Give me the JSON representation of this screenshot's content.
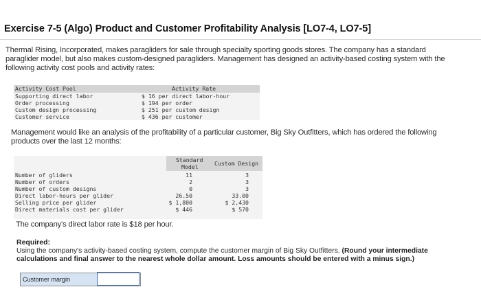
{
  "title": "Exercise 7-5 (Algo) Product and Customer Profitability Analysis [LO7-4, LO7-5]",
  "intro": {
    "line1": "Thermal Rising, Incorporated, makes paragliders for sale through specialty sporting goods stores. The company has a standard",
    "line2": "paraglider model, but also makes custom-designed paragliders. Management has designed an activity-based costing system with the",
    "line3": "following activity cost pools and activity rates:"
  },
  "activity_table": {
    "header_pool": "Activity Cost Pool",
    "header_rate": "Activity Rate",
    "rows": [
      {
        "pool": "Supporting direct labor",
        "rate": "$ 16  per direct labor-hour"
      },
      {
        "pool": "Order processing",
        "rate": "$ 194  per order"
      },
      {
        "pool": "Custom design processing",
        "rate": "$ 251  per custom design"
      },
      {
        "pool": "Customer service",
        "rate": "$ 436  per customer"
      }
    ]
  },
  "analysis_intro": {
    "line1": "Management would like an analysis of the profitability of a particular customer, Big Sky Outfitters, which has ordered the following",
    "line2": "products over the last 12 months:"
  },
  "product_table": {
    "header_standard_1": "Standard",
    "header_standard_2": "Model",
    "header_custom": "Custom Design",
    "rows": [
      {
        "label": "Number of gliders",
        "standard": "11",
        "custom": "3"
      },
      {
        "label": "Number of orders",
        "standard": "2",
        "custom": "3"
      },
      {
        "label": "Number of custom designs",
        "standard": "0",
        "custom": "3"
      },
      {
        "label": "Direct labor-hours per glider",
        "standard": "26.50",
        "custom": "33.00"
      },
      {
        "label": "Selling price per glider",
        "standard": "$ 1,800",
        "custom": "$ 2,430"
      },
      {
        "label": "Direct materials cost per glider",
        "standard": "$ 446",
        "custom": "$ 570"
      }
    ]
  },
  "labor_rate_note": "The company's direct labor rate is $18 per hour.",
  "required": {
    "label": "Required:",
    "text_plain": "Using the company's activity-based costing system, compute the customer margin of Big Sky Outfitters.",
    "text_bold_1": "(Round your intermediate",
    "text_bold_2": "calculations and final answer to the nearest whole dollar amount. Loss amounts should be entered with a minus sign.)"
  },
  "answer": {
    "label": "Customer margin",
    "value": ""
  }
}
